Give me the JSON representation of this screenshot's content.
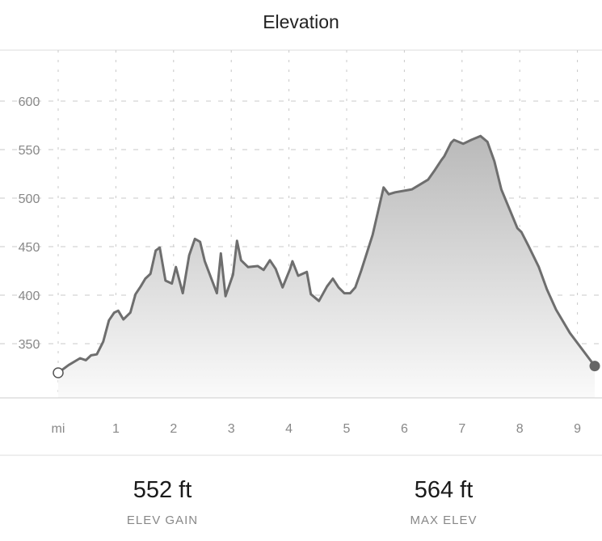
{
  "header": {
    "title": "Elevation"
  },
  "chart_data": {
    "type": "area",
    "title": "Elevation",
    "xlabel": "mi",
    "ylabel": "",
    "x_ticks": [
      1,
      2,
      3,
      4,
      5,
      6,
      7,
      8,
      9
    ],
    "x_unit_label": "mi",
    "y_ticks": [
      350,
      400,
      450,
      500,
      550,
      600
    ],
    "xlim": [
      0,
      9.5
    ],
    "ylim": [
      295,
      650
    ],
    "grid": true,
    "series": [
      {
        "name": "Elevation (ft)",
        "x": [
          0,
          0.18,
          0.38,
          0.48,
          0.57,
          0.67,
          0.78,
          0.88,
          0.97,
          1.04,
          1.13,
          1.25,
          1.34,
          1.43,
          1.51,
          1.6,
          1.69,
          1.76,
          1.86,
          1.97,
          2.04,
          2.16,
          2.27,
          2.37,
          2.46,
          2.54,
          2.75,
          2.82,
          2.9,
          3.03,
          3.1,
          3.17,
          3.29,
          3.46,
          3.56,
          3.67,
          3.77,
          3.89,
          4.02,
          4.06,
          4.16,
          4.31,
          4.38,
          4.52,
          4.66,
          4.76,
          4.86,
          4.96,
          5.06,
          5.15,
          5.25,
          5.45,
          5.64,
          5.73,
          5.84,
          6.13,
          6.27,
          6.41,
          6.53,
          6.64,
          6.69,
          6.81,
          6.86,
          7.02,
          7.16,
          7.32,
          7.44,
          7.56,
          7.68,
          7.96,
          8.03,
          8.15,
          8.33,
          8.47,
          8.63,
          8.87,
          9.3
        ],
        "y": [
          320,
          328,
          335,
          333,
          338,
          339,
          352,
          374,
          382,
          384,
          375,
          382,
          401,
          409,
          417,
          422,
          446,
          449,
          415,
          412,
          429,
          402,
          441,
          458,
          455,
          435,
          402,
          443,
          399,
          421,
          456,
          436,
          429,
          430,
          426,
          436,
          427,
          408,
          427,
          435,
          420,
          424,
          401,
          394,
          409,
          417,
          408,
          402,
          402,
          408,
          425,
          462,
          511,
          504,
          506,
          509,
          514,
          519,
          529,
          539,
          543,
          557,
          560,
          556,
          560,
          564,
          558,
          538,
          509,
          469,
          465,
          451,
          429,
          406,
          385,
          361,
          327
        ]
      }
    ],
    "colors": {
      "line": "#6e6e6e",
      "fill_top": "#b9b9b9",
      "fill_bottom": "#fafafa",
      "grid": "#c8c8c8",
      "end_marker": "#666666"
    }
  },
  "stats": [
    {
      "value": "552 ft",
      "label": "ELEV GAIN"
    },
    {
      "value": "564 ft",
      "label": "MAX ELEV"
    }
  ]
}
